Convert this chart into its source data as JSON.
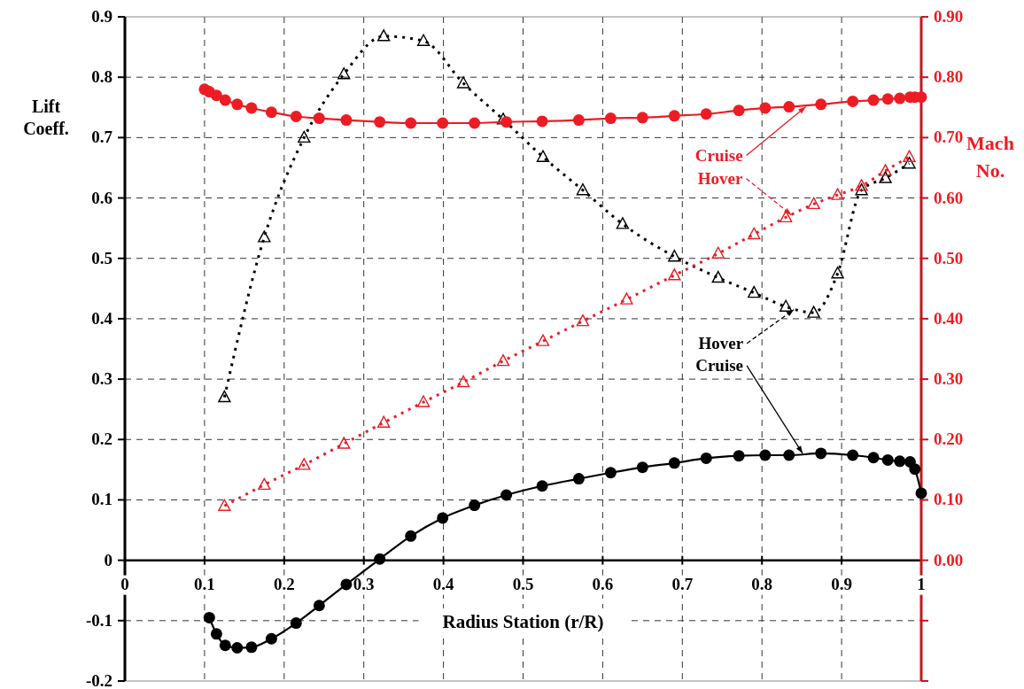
{
  "chart_data": {
    "type": "line",
    "xlabel": "Radius Station (r/R)",
    "ylabel": "Lift Coeff.",
    "y2label": "Mach No.",
    "xlim": [
      0,
      1
    ],
    "xticks": [
      0,
      0.1,
      0.2,
      0.3,
      0.4,
      0.5,
      0.6,
      0.7,
      0.8,
      0.9,
      1
    ],
    "ylim": [
      -0.2,
      0.9
    ],
    "yticks": [
      -0.2,
      -0.1,
      0,
      0.1,
      0.2,
      0.3,
      0.4,
      0.5,
      0.6,
      0.7,
      0.8,
      0.9
    ],
    "y2lim": [
      -0.2,
      0.9
    ],
    "y2ticks": [
      {
        "value": -0.2,
        "label": null
      },
      {
        "value": -0.1,
        "label": null
      },
      {
        "value": 0,
        "label": "0.00"
      },
      {
        "value": 0.1,
        "label": "0.10"
      },
      {
        "value": 0.2,
        "label": "0.20"
      },
      {
        "value": 0.3,
        "label": "0.30"
      },
      {
        "value": 0.4,
        "label": "0.40"
      },
      {
        "value": 0.5,
        "label": "0.50"
      },
      {
        "value": 0.6,
        "label": "0.60"
      },
      {
        "value": 0.7,
        "label": "0.70"
      },
      {
        "value": 0.8,
        "label": "0.80"
      },
      {
        "value": 0.9,
        "label": "0.90"
      }
    ],
    "grid": true,
    "series": [
      {
        "color": "#000000",
        "marker": "circle",
        "line_style": "solid",
        "x": [
          0.106,
          0.115,
          0.126,
          0.141,
          0.159,
          0.184,
          0.215,
          0.244,
          0.278,
          0.32,
          0.359,
          0.399,
          0.439,
          0.479,
          0.524,
          0.57,
          0.61,
          0.65,
          0.69,
          0.73,
          0.771,
          0.804,
          0.834,
          0.874,
          0.914,
          0.94,
          0.958,
          0.973,
          0.986,
          0.992,
          1.0
        ],
        "values": [
          -0.095,
          -0.122,
          -0.141,
          -0.145,
          -0.144,
          -0.13,
          -0.104,
          -0.075,
          -0.04,
          0.002,
          0.04,
          0.07,
          0.091,
          0.108,
          0.123,
          0.135,
          0.145,
          0.154,
          0.161,
          0.169,
          0.173,
          0.174,
          0.174,
          0.177,
          0.174,
          0.17,
          0.166,
          0.164,
          0.163,
          0.151,
          0.111
        ]
      },
      {
        "color": "#000000",
        "marker": "triangle",
        "line_style": "dotted",
        "x": [
          0.125,
          0.175,
          0.225,
          0.275,
          0.325,
          0.375,
          0.425,
          0.475,
          0.525,
          0.575,
          0.625,
          0.69,
          0.745,
          0.79,
          0.83,
          0.865,
          0.895,
          0.925,
          0.955,
          0.985
        ],
        "values": [
          0.27,
          0.535,
          0.7,
          0.805,
          0.868,
          0.86,
          0.79,
          0.73,
          0.668,
          0.613,
          0.557,
          0.503,
          0.468,
          0.443,
          0.42,
          0.41,
          0.475,
          0.613,
          0.633,
          0.657
        ]
      },
      {
        "color": "#ed1c24",
        "axis": "y2",
        "marker": "circle",
        "line_style": "solid",
        "x": [
          0.1,
          0.106,
          0.115,
          0.126,
          0.141,
          0.159,
          0.184,
          0.215,
          0.244,
          0.278,
          0.32,
          0.359,
          0.399,
          0.439,
          0.479,
          0.524,
          0.57,
          0.61,
          0.65,
          0.69,
          0.73,
          0.771,
          0.804,
          0.834,
          0.874,
          0.914,
          0.94,
          0.958,
          0.973,
          0.986,
          0.992,
          1.0
        ],
        "values": [
          0.78,
          0.776,
          0.77,
          0.762,
          0.755,
          0.749,
          0.742,
          0.735,
          0.732,
          0.729,
          0.726,
          0.724,
          0.724,
          0.724,
          0.726,
          0.727,
          0.729,
          0.732,
          0.733,
          0.736,
          0.739,
          0.745,
          0.749,
          0.751,
          0.755,
          0.76,
          0.762,
          0.764,
          0.765,
          0.767,
          0.767,
          0.767
        ]
      },
      {
        "color": "#ed1c24",
        "axis": "y2",
        "marker": "triangle",
        "line_style": "dotted",
        "x": [
          0.125,
          0.175,
          0.225,
          0.275,
          0.325,
          0.375,
          0.425,
          0.475,
          0.525,
          0.575,
          0.63,
          0.69,
          0.745,
          0.79,
          0.83,
          0.865,
          0.895,
          0.925,
          0.955,
          0.985
        ],
        "values": [
          0.09,
          0.125,
          0.158,
          0.193,
          0.228,
          0.262,
          0.295,
          0.33,
          0.363,
          0.396,
          0.432,
          0.472,
          0.508,
          0.54,
          0.568,
          0.59,
          0.605,
          0.62,
          0.645,
          0.668
        ]
      }
    ],
    "annotations": [
      {
        "text": "Cruise",
        "x": 0.855,
        "y": 0.751
      },
      {
        "text": "Hover",
        "x": 0.837,
        "y": 0.572
      },
      {
        "text": "Hover",
        "x": 0.84,
        "y": 0.415
      },
      {
        "text": "Cruise",
        "x": 0.851,
        "y": 0.177
      }
    ]
  }
}
